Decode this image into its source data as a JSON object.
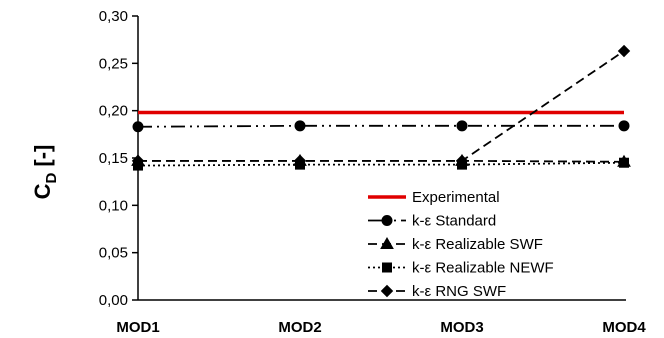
{
  "chart_data": {
    "type": "line",
    "categories": [
      "MOD1",
      "MOD2",
      "MOD3",
      "MOD4"
    ],
    "ylabel": "C",
    "ylabel_sub": "D",
    "ylabel_unit": "[-]",
    "ylim": [
      0.0,
      0.3
    ],
    "yticks": [
      "0,00",
      "0,05",
      "0,10",
      "0,15",
      "0,20",
      "0,25",
      "0,30"
    ],
    "grid": false,
    "legend_position": "bottom-right",
    "series": [
      {
        "name": "Experimental",
        "values": [
          0.198,
          0.198,
          0.198,
          0.198
        ],
        "color": "#e00000",
        "dash": "solid",
        "marker": "none"
      },
      {
        "name": "k-ε Standard",
        "values": [
          0.183,
          0.184,
          0.184,
          0.184
        ],
        "color": "#000000",
        "dash": "dashdotdot",
        "marker": "circle"
      },
      {
        "name": "k-ε Realizable SWF",
        "values": [
          0.147,
          0.147,
          0.147,
          0.146
        ],
        "color": "#000000",
        "dash": "dashed",
        "marker": "triangle"
      },
      {
        "name": "k-ε Realizable NEWF",
        "values": [
          0.142,
          0.143,
          0.143,
          0.145
        ],
        "color": "#000000",
        "dash": "dotted",
        "marker": "square"
      },
      {
        "name": "k-ε RNG SWF",
        "values": [
          0.147,
          0.147,
          0.147,
          0.263
        ],
        "color": "#000000",
        "dash": "dashed",
        "marker": "diamond"
      }
    ]
  }
}
